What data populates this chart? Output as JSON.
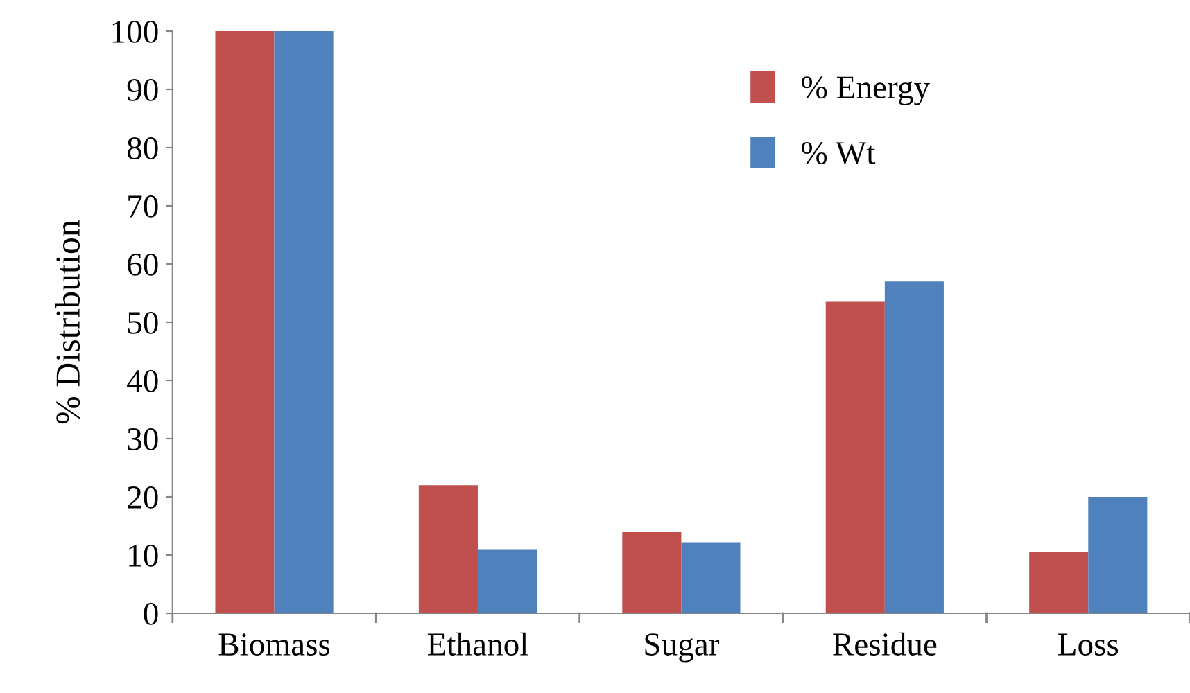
{
  "chart_data": {
    "type": "bar",
    "ylabel": "% Distribution",
    "categories": [
      "Biomass",
      "Ethanol",
      "Sugar",
      "Residue",
      "Loss"
    ],
    "series": [
      {
        "name": "% Energy",
        "color": "#c0504d",
        "values": [
          100,
          22,
          14,
          53.5,
          10.5
        ]
      },
      {
        "name": "% Wt",
        "color": "#4f81bd",
        "values": [
          100,
          11,
          12.2,
          57,
          20
        ]
      }
    ],
    "ylim": [
      0,
      100
    ],
    "yticks": [
      0,
      10,
      20,
      30,
      40,
      50,
      60,
      70,
      80,
      90,
      100
    ],
    "grid": false,
    "legend": "top"
  }
}
